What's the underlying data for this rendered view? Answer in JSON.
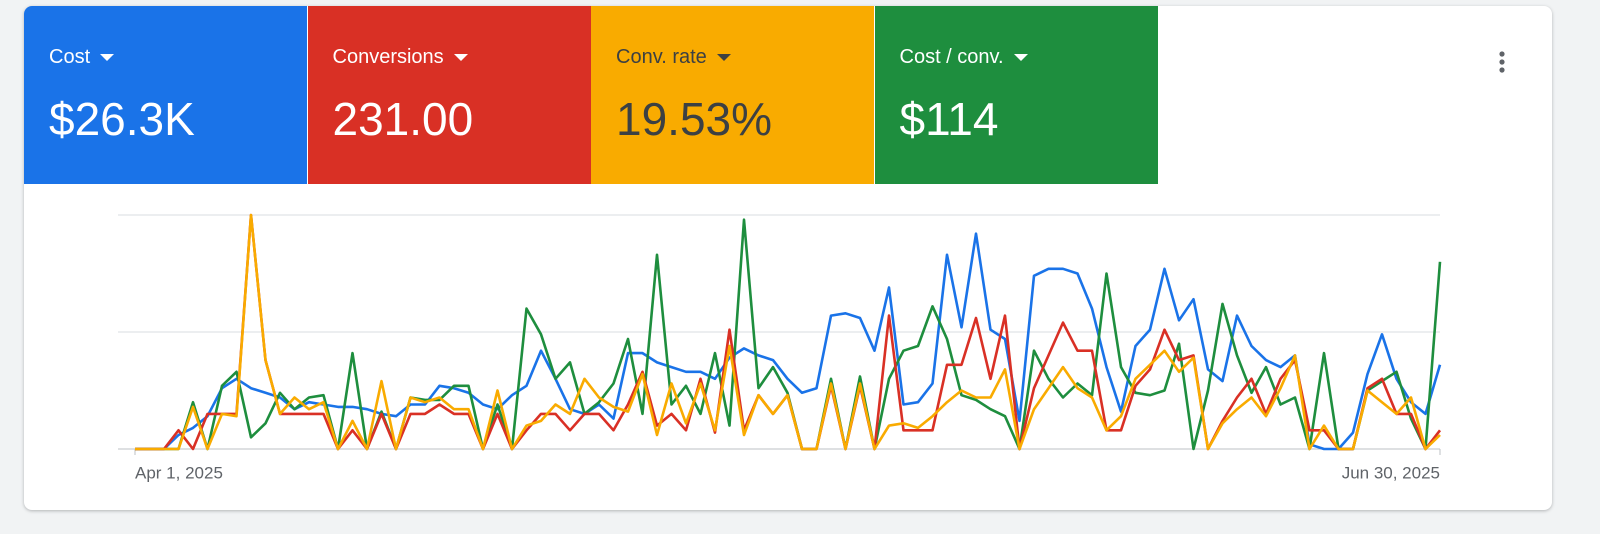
{
  "chart_data": {
    "type": "line",
    "categories": [
      "Apr 1, 2025",
      null,
      null,
      null,
      null,
      null,
      null,
      null,
      null,
      null,
      null,
      null,
      null,
      null,
      null,
      null,
      null,
      null,
      null,
      null,
      null,
      null,
      null,
      null,
      null,
      null,
      null,
      null,
      null,
      null,
      null,
      null,
      null,
      null,
      null,
      null,
      null,
      null,
      null,
      null,
      null,
      null,
      null,
      null,
      null,
      null,
      null,
      null,
      null,
      null,
      null,
      null,
      null,
      null,
      null,
      null,
      null,
      null,
      null,
      null,
      null,
      null,
      null,
      null,
      null,
      null,
      null,
      null,
      null,
      null,
      null,
      null,
      null,
      null,
      null,
      null,
      null,
      null,
      null,
      null,
      null,
      null,
      null,
      null,
      null,
      null,
      null,
      null,
      null,
      null,
      "Jun 30, 2025"
    ],
    "ylim": [
      0,
      100
    ],
    "yticks": [
      0,
      50,
      100
    ],
    "grid": true,
    "series": [
      {
        "name": "Cost",
        "total": "$26.3K",
        "color": "#1a73e8",
        "values": [
          0,
          0,
          0,
          6,
          9,
          14,
          26,
          30,
          26,
          24,
          22,
          17,
          20,
          19,
          18,
          18,
          17,
          15,
          14,
          19,
          19,
          27,
          26,
          24,
          19,
          17,
          23,
          27,
          42,
          30,
          17,
          15,
          19,
          13,
          41,
          41,
          37,
          35,
          33,
          33,
          30,
          39,
          43,
          40,
          38,
          30,
          24,
          26,
          57,
          58,
          56,
          42,
          69,
          19,
          20,
          28,
          83,
          52,
          92,
          51,
          47,
          12,
          74,
          77,
          77,
          75,
          60,
          35,
          16,
          44,
          51,
          77,
          55,
          64,
          34,
          29,
          57,
          44,
          38,
          35,
          40,
          2,
          0,
          0,
          7,
          32,
          49,
          30,
          20,
          15,
          36
        ]
      },
      {
        "name": "Conversions",
        "total": "231.00",
        "color": "#d93025",
        "values": [
          0,
          0,
          0,
          8,
          0,
          15,
          15,
          15,
          100,
          38,
          15,
          15,
          15,
          15,
          0,
          8,
          0,
          15,
          0,
          15,
          15,
          19,
          15,
          15,
          0,
          15,
          0,
          8,
          15,
          15,
          8,
          15,
          15,
          8,
          19,
          33,
          10,
          15,
          8,
          30,
          7,
          51,
          8,
          23,
          15,
          23,
          0,
          0,
          27,
          0,
          27,
          0,
          57,
          8,
          8,
          8,
          36,
          36,
          56,
          30,
          57,
          0,
          26,
          40,
          54,
          42,
          42,
          8,
          8,
          27,
          34,
          51,
          38,
          40,
          0,
          12,
          22,
          30,
          15,
          30,
          38,
          8,
          8,
          0,
          0,
          26,
          30,
          15,
          15,
          0,
          8
        ]
      },
      {
        "name": "Conv. rate",
        "total": "19.53%",
        "color": "#f9ab00",
        "values": [
          0,
          0,
          0,
          0,
          18,
          0,
          15,
          14,
          100,
          38,
          15,
          22,
          17,
          20,
          0,
          12,
          0,
          29,
          0,
          22,
          20,
          22,
          17,
          17,
          0,
          25,
          0,
          10,
          12,
          19,
          15,
          30,
          22,
          18,
          16,
          32,
          6,
          28,
          11,
          28,
          8,
          44,
          6,
          23,
          15,
          23,
          0,
          0,
          28,
          0,
          28,
          0,
          10,
          11,
          9,
          14,
          20,
          25,
          22,
          22,
          34,
          0,
          17,
          26,
          35,
          26,
          22,
          8,
          14,
          30,
          36,
          42,
          33,
          39,
          0,
          11,
          17,
          22,
          14,
          26,
          40,
          0,
          10,
          0,
          0,
          25,
          20,
          15,
          22,
          0,
          6
        ]
      },
      {
        "name": "Cost / conv.",
        "total": "$114",
        "color": "#1e8e3e",
        "values": [
          0,
          0,
          0,
          0,
          20,
          0,
          27,
          33,
          5,
          11,
          24,
          17,
          22,
          23,
          0,
          41,
          0,
          16,
          0,
          22,
          21,
          21,
          27,
          27,
          0,
          19,
          0,
          60,
          49,
          30,
          37,
          15,
          20,
          28,
          47,
          15,
          83,
          19,
          27,
          15,
          41,
          10,
          98,
          26,
          35,
          24,
          0,
          0,
          30,
          0,
          31,
          0,
          30,
          42,
          44,
          61,
          47,
          23,
          21,
          17,
          14,
          0,
          42,
          30,
          22,
          28,
          23,
          75,
          35,
          24,
          23,
          25,
          45,
          0,
          25,
          62,
          40,
          24,
          35,
          19,
          22,
          0,
          41,
          0,
          0,
          25,
          29,
          33,
          13,
          0,
          80
        ]
      }
    ]
  }
}
